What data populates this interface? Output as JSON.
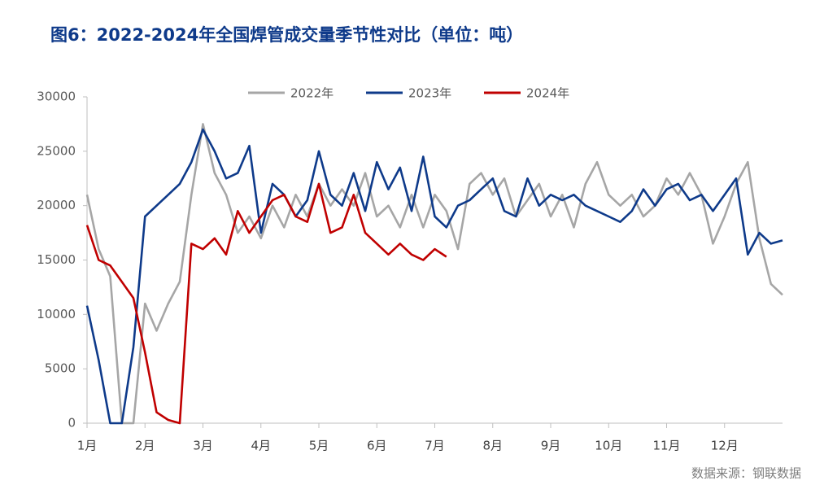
{
  "chart_data": {
    "type": "line",
    "title": "图6：2022-2024年全国焊管成交量季节性对比（单位：吨）",
    "source": "数据来源：钢联数据",
    "x": [
      1.0,
      1.2,
      1.4,
      1.6,
      1.8,
      2.0,
      2.2,
      2.4,
      2.6,
      2.8,
      3.0,
      3.2,
      3.4,
      3.6,
      3.8,
      4.0,
      4.2,
      4.4,
      4.6,
      4.8,
      5.0,
      5.2,
      5.4,
      5.6,
      5.8,
      6.0,
      6.2,
      6.4,
      6.6,
      6.8,
      7.0,
      7.2,
      7.4,
      7.6,
      7.8,
      8.0,
      8.2,
      8.4,
      8.6,
      8.8,
      9.0,
      9.2,
      9.4,
      9.6,
      9.8,
      10.0,
      10.2,
      10.4,
      10.6,
      10.8,
      11.0,
      11.2,
      11.4,
      11.6,
      11.8,
      12.0,
      12.2,
      12.4,
      12.6,
      12.8,
      13.0
    ],
    "xlim": [
      1,
      13
    ],
    "xticks": [
      {
        "value": 1,
        "label": "1月"
      },
      {
        "value": 2,
        "label": "2月"
      },
      {
        "value": 3,
        "label": "3月"
      },
      {
        "value": 4,
        "label": "4月"
      },
      {
        "value": 5,
        "label": "5月"
      },
      {
        "value": 6,
        "label": "6月"
      },
      {
        "value": 7,
        "label": "7月"
      },
      {
        "value": 8,
        "label": "8月"
      },
      {
        "value": 9,
        "label": "9月"
      },
      {
        "value": 10,
        "label": "10月"
      },
      {
        "value": 11,
        "label": "11月"
      },
      {
        "value": 12,
        "label": "12月"
      }
    ],
    "ylim": [
      0,
      30000
    ],
    "yticks": [
      0,
      5000,
      10000,
      15000,
      20000,
      25000,
      30000
    ],
    "grid": false,
    "legend": "top",
    "series": [
      {
        "name": "2022年",
        "color": "#a6a6a6",
        "values": [
          21000,
          16000,
          13500,
          0,
          0,
          11000,
          8500,
          11000,
          13000,
          21000,
          27500,
          23000,
          21000,
          17500,
          19000,
          17000,
          20000,
          18000,
          21000,
          19000,
          22000,
          20000,
          21500,
          20000,
          23000,
          19000,
          20000,
          18000,
          21000,
          18000,
          21000,
          19500,
          16000,
          22000,
          23000,
          21000,
          22500,
          19000,
          20500,
          22000,
          19000,
          21000,
          18000,
          22000,
          24000,
          21000,
          20000,
          21000,
          19000,
          20000,
          22500,
          21000,
          23000,
          21000,
          16500,
          19000,
          22000,
          24000,
          17000,
          12800,
          11800
        ]
      },
      {
        "name": "2023年",
        "color": "#0e3a8a",
        "values": [
          10800,
          5800,
          0,
          0,
          7000,
          19000,
          20000,
          21000,
          22000,
          24000,
          27000,
          25000,
          22500,
          23000,
          25500,
          17500,
          22000,
          21000,
          19000,
          20500,
          25000,
          21000,
          20000,
          23000,
          19500,
          24000,
          21500,
          23500,
          19500,
          24500,
          19000,
          18000,
          20000,
          20500,
          21500,
          22500,
          19500,
          19000,
          22500,
          20000,
          21000,
          20500,
          21000,
          20000,
          19500,
          19000,
          18500,
          19500,
          21500,
          20000,
          21500,
          22000,
          20500,
          21000,
          19500,
          21000,
          22500,
          15500,
          17500,
          16500,
          16800
        ]
      },
      {
        "name": "2024年",
        "color": "#c00000",
        "values": [
          18200,
          15000,
          14500,
          13000,
          11500,
          6500,
          1000,
          300,
          0,
          16500,
          16000,
          17000,
          15500,
          19500,
          17500,
          19000,
          20500,
          21000,
          19000,
          18500,
          22000,
          17500,
          18000,
          21000,
          17500,
          16500,
          15500,
          16500,
          15500,
          15000,
          16000,
          15300,
          null,
          null,
          null,
          null,
          null,
          null,
          null,
          null,
          null,
          null,
          null,
          null,
          null,
          null,
          null,
          null,
          null,
          null,
          null,
          null,
          null,
          null,
          null,
          null,
          null,
          null,
          null,
          null,
          null
        ]
      }
    ]
  }
}
